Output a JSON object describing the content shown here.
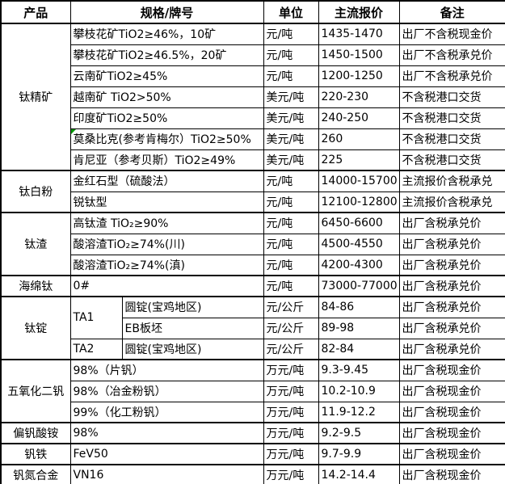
{
  "table": {
    "headers": [
      "产品",
      "规格/牌号",
      "单位",
      "主流报价",
      "备注"
    ],
    "marker_color": "#009900",
    "groups": [
      {
        "product": "钛精矿",
        "rows": [
          {
            "spec": "攀枝花矿TiO2≥46%，10矿",
            "unit": "元/吨",
            "price": "1435-1470",
            "note": "出厂不含税现金价"
          },
          {
            "spec": "攀枝花矿TiO2≥46.5%，20矿",
            "unit": "元/吨",
            "price": "1450-1500",
            "note": "出厂不含税承兑价"
          },
          {
            "spec": "云南矿TiO2≥45%",
            "unit": "元/吨",
            "price": "1200-1250",
            "note": "出厂不含税承兑价"
          },
          {
            "spec": "越南矿 TiO2>50%",
            "unit": "美元/吨",
            "price": "220-230",
            "note": "不含税港口交货"
          },
          {
            "spec": "印度矿TiO2≥50%",
            "unit": "美元/吨",
            "price": "240-250",
            "note": "不含税港口交货"
          },
          {
            "spec": "莫桑比克(参考肯梅尔）TiO2≥50%",
            "unit": "美元/吨",
            "price": "260",
            "note": "不含税港口交货",
            "marker": true
          },
          {
            "spec": "肯尼亚（参考贝斯）TiO2≥49%",
            "unit": "美元/吨",
            "price": "225",
            "note": "不含税港口交货"
          }
        ]
      },
      {
        "product": "钛白粉",
        "rows": [
          {
            "spec": "金红石型（硫酸法）",
            "unit": "元/吨",
            "price": "14000-15700",
            "note": "主流报价含税承兑"
          },
          {
            "spec": "锐钛型",
            "unit": "元/吨",
            "price": "12100-12800",
            "note": "主流报价含税承兑"
          }
        ]
      },
      {
        "product": "钛渣",
        "rows": [
          {
            "spec": "高钛渣 TiO₂≥90%",
            "unit": "元/吨",
            "price": "6450-6600",
            "note": "出厂含税承兑价"
          },
          {
            "spec": "酸溶渣TiO₂≥74%(川)",
            "unit": "元/吨",
            "price": "4500-4550",
            "note": "出厂含税承兑价"
          },
          {
            "spec": "酸溶渣TiO₂≥74%(滇)",
            "unit": "元/吨",
            "price": "4200-4300",
            "note": "出厂含税承兑价"
          }
        ]
      },
      {
        "product": "海绵钛",
        "rows": [
          {
            "spec": "0#",
            "unit": "元/吨",
            "price": "73000-77000",
            "note": "出厂含税承兑价"
          }
        ]
      },
      {
        "product": "钛锭",
        "rows": [
          {
            "grade": "TA1",
            "grade_rowspan": 2,
            "spec": "圆锭(宝鸡地区)",
            "unit": "元/公斤",
            "price": "84-86",
            "note": "出厂含税承兑价"
          },
          {
            "spec": "EB板坯",
            "unit": "元/公斤",
            "price": "89-98",
            "note": "出厂含税承兑价"
          },
          {
            "grade": "TA2",
            "grade_rowspan": 1,
            "spec": "圆锭(宝鸡地区)",
            "unit": "元/公斤",
            "price": "82-84",
            "note": "出厂含税承兑价"
          }
        ]
      },
      {
        "product": "五氧化二钒",
        "rows": [
          {
            "spec": "98%（片钒）",
            "unit": "万元/吨",
            "price": "9.3-9.45",
            "note": "出厂含税现金价"
          },
          {
            "spec": "98%（冶金粉钒）",
            "unit": "万元/吨",
            "price": "10.2-10.9",
            "note": "出厂含税现金价"
          },
          {
            "spec": "99%（化工粉钒）",
            "unit": "万元/吨",
            "price": "11.9-12.2",
            "note": "出厂含税现金价"
          }
        ]
      },
      {
        "product": "偏钒酸铵",
        "rows": [
          {
            "spec": "98%",
            "unit": "万元/吨",
            "price": "9.2-9.5",
            "note": "出厂含税现金价"
          }
        ]
      },
      {
        "product": "钒铁",
        "rows": [
          {
            "spec": "FeV50",
            "unit": "万元/吨",
            "price": "9.7-9.9",
            "note": "出厂含税现金价"
          }
        ]
      },
      {
        "product": "钒氮合金",
        "rows": [
          {
            "spec": "VN16",
            "unit": "万元/吨",
            "price": "14.2-14.4",
            "note": "出厂含税现金价"
          }
        ]
      }
    ]
  }
}
